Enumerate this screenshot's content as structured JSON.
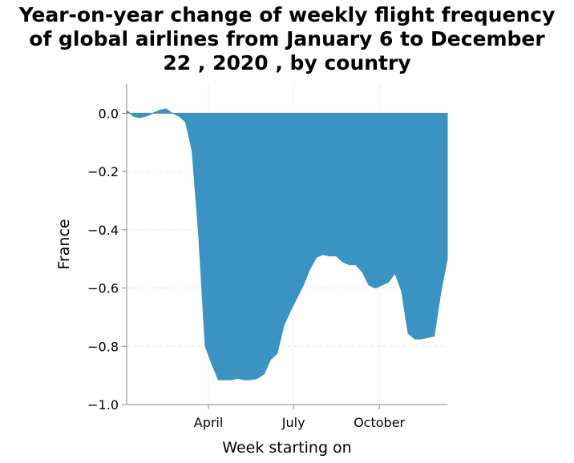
{
  "chart_data": {
    "type": "area",
    "title_lines": [
      "Year-on-year change of weekly flight frequency",
      "of global airlines from January 6 to December",
      "22 , 2020 , by country"
    ],
    "xlabel": "Week starting on",
    "ylabel": "France",
    "ylim": [
      -1.0,
      0.1
    ],
    "yticks": [
      0.0,
      -0.2,
      -0.4,
      -0.6,
      -0.8,
      -1.0
    ],
    "ytick_labels": [
      "0.0",
      "−0.2",
      "−0.4",
      "−0.6",
      "−0.8",
      "−1.0"
    ],
    "xticks": [
      {
        "label": "April",
        "week": 12.5
      },
      {
        "label": "July",
        "week": 25.5
      },
      {
        "label": "October",
        "week": 38.6
      }
    ],
    "grid": true,
    "color": "#3a93c3",
    "x_label_note": "weeks of 2020, Jan 6 to Dec 22",
    "values": [
      0.01,
      -0.01,
      -0.015,
      -0.01,
      0.0,
      0.01,
      0.015,
      0.0,
      -0.01,
      -0.03,
      -0.13,
      -0.42,
      -0.8,
      -0.86,
      -0.915,
      -0.915,
      -0.915,
      -0.91,
      -0.915,
      -0.915,
      -0.91,
      -0.895,
      -0.845,
      -0.825,
      -0.73,
      -0.68,
      -0.635,
      -0.59,
      -0.535,
      -0.495,
      -0.485,
      -0.49,
      -0.49,
      -0.51,
      -0.52,
      -0.52,
      -0.545,
      -0.59,
      -0.6,
      -0.59,
      -0.58,
      -0.55,
      -0.61,
      -0.755,
      -0.775,
      -0.775,
      -0.77,
      -0.765,
      -0.615,
      -0.5
    ]
  }
}
